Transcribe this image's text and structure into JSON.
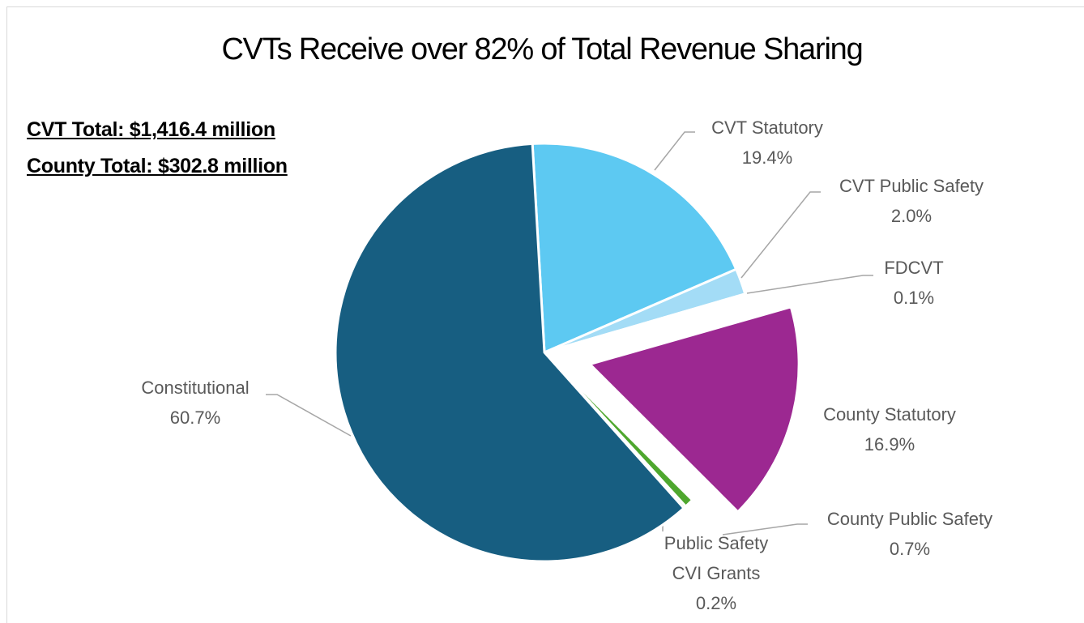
{
  "chart_data": {
    "type": "pie",
    "title": "CVTs Receive over 82% of Total Revenue Sharing",
    "annotations": [
      "CVT Total: $1,416.4 million",
      "County Total: $302.8 million"
    ],
    "categories": [
      "CVT Statutory",
      "CVT Public Safety",
      "FDCVT",
      "County Statutory",
      "County Public Safety",
      "Public Safety\nCVI Grants",
      "Constitutional"
    ],
    "values": [
      19.4,
      2.0,
      0.1,
      16.9,
      0.7,
      0.2,
      60.7
    ],
    "value_labels": [
      "19.4%",
      "2.0%",
      "0.1%",
      "16.9%",
      "0.7%",
      "0.2%",
      "60.7%"
    ],
    "colors": [
      "#5dc9f2",
      "#a3dcf6",
      "#a3dcf6",
      "#9c2891",
      "#4ea72e",
      "#4ea72e",
      "#175e81"
    ]
  }
}
